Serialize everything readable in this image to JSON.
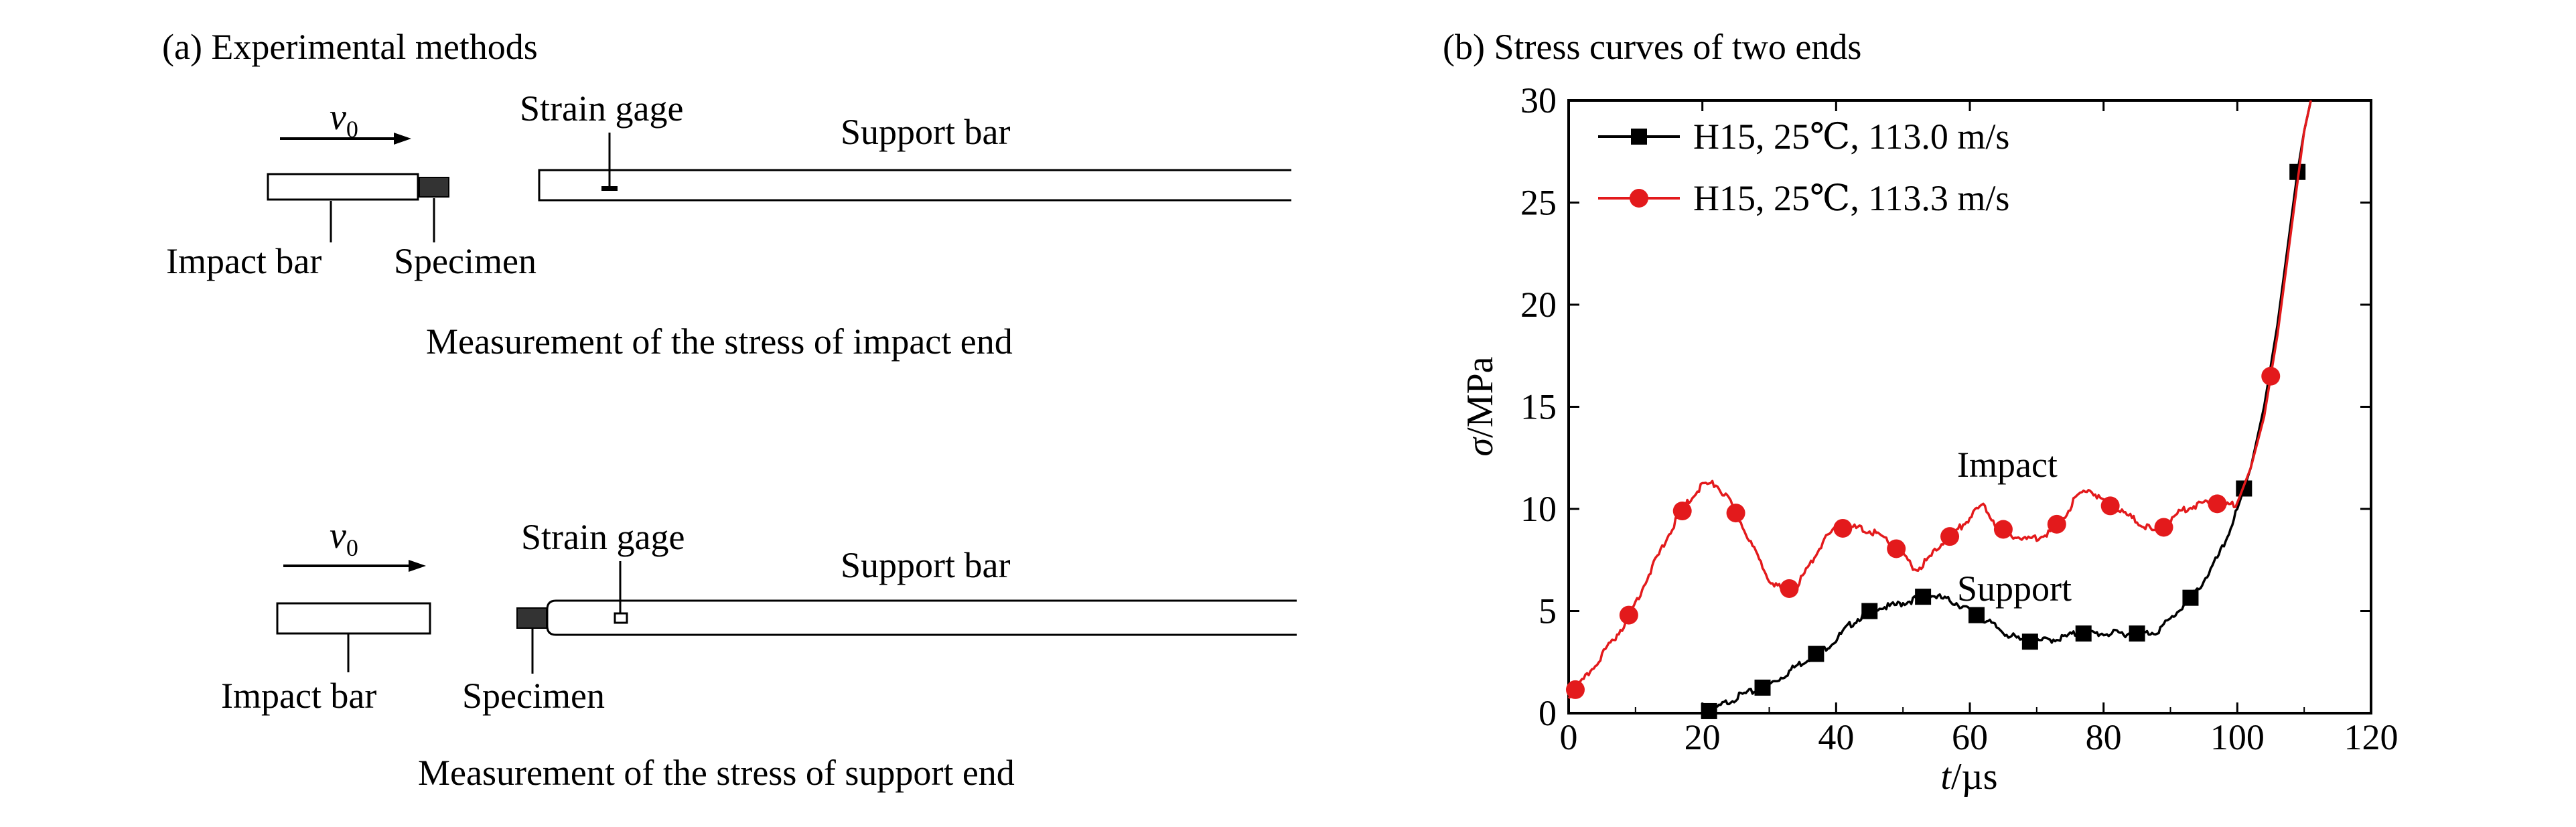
{
  "panel_a": {
    "title": "(a) Experimental methods",
    "top": {
      "velocity_label": "v",
      "velocity_subscript": "0",
      "strain_gage_label": "Strain gage",
      "support_bar_label": "Support bar",
      "impact_bar_label": "Impact bar",
      "specimen_label": "Specimen",
      "caption": "Measurement of the stress of impact end"
    },
    "bottom": {
      "velocity_label": "v",
      "velocity_subscript": "0",
      "strain_gage_label": "Strain gage",
      "support_bar_label": "Support bar",
      "impact_bar_label": "Impact bar",
      "specimen_label": "Specimen",
      "caption": "Measurement of the stress of support end"
    }
  },
  "panel_b": {
    "title": "(b) Stress curves of two ends",
    "annotations": {
      "impact": "Impact",
      "support": "Support"
    }
  },
  "chart_data": {
    "type": "line",
    "title": "(b) Stress curves of two ends",
    "xlabel_italic": "t",
    "xlabel_unit": "/µs",
    "ylabel_italic": "σ",
    "ylabel_unit": "/MPa",
    "xlim": [
      0,
      120
    ],
    "ylim": [
      0,
      30
    ],
    "xticks": [
      "0",
      "20",
      "40",
      "60",
      "80",
      "100",
      "120"
    ],
    "yticks": [
      "0",
      "5",
      "10",
      "15",
      "20",
      "25",
      "30"
    ],
    "legend_position": "top-left",
    "grid": false,
    "series": [
      {
        "name": "H15, 25℃, 113.0 m/s",
        "color": "#000000",
        "marker": "square",
        "line_x": [
          20,
          21,
          22,
          24,
          26,
          28,
          30,
          32,
          34,
          36,
          38,
          40,
          42,
          44,
          46,
          48,
          50,
          52,
          54,
          56,
          58,
          60,
          62,
          64,
          66,
          68,
          70,
          72,
          74,
          76,
          78,
          80,
          82,
          84,
          86,
          88,
          90,
          92,
          94,
          96,
          98,
          100,
          102,
          104,
          106,
          108,
          109,
          110,
          111
        ],
        "line_y": [
          0,
          0.1,
          0.2,
          0.6,
          0.9,
          1.1,
          1.4,
          1.8,
          2.3,
          2.7,
          3.1,
          3.6,
          4.3,
          4.8,
          5.2,
          5.2,
          5.4,
          5.6,
          5.8,
          5.6,
          5.4,
          5.0,
          4.6,
          4.2,
          3.8,
          3.5,
          3.5,
          3.6,
          3.7,
          3.9,
          3.9,
          3.9,
          3.9,
          3.9,
          3.9,
          4.0,
          4.6,
          5.3,
          6.0,
          7.0,
          8.2,
          10.0,
          12.0,
          15.0,
          19.0,
          24.0,
          26.5,
          28.5,
          30
        ]
      },
      {
        "name": "H15, 25℃, 113.3 m/s",
        "color": "#e31a1c",
        "marker": "circle",
        "line_x": [
          0,
          2,
          4,
          6,
          8,
          10,
          12,
          14,
          16,
          18,
          20,
          22,
          24,
          26,
          28,
          30,
          32,
          34,
          36,
          38,
          40,
          42,
          44,
          46,
          48,
          50,
          52,
          54,
          56,
          58,
          60,
          62,
          64,
          66,
          68,
          70,
          72,
          74,
          76,
          78,
          80,
          82,
          84,
          86,
          88,
          90,
          92,
          94,
          96,
          98,
          100,
          102,
          104,
          106,
          108,
          109,
          110,
          111
        ],
        "line_y": [
          0.8,
          1.5,
          2.4,
          3.3,
          4.2,
          5.4,
          6.8,
          8.1,
          9.4,
          10.4,
          11.2,
          11.2,
          10.4,
          9.2,
          7.8,
          6.6,
          6.0,
          6.2,
          7.2,
          8.4,
          9.0,
          9.1,
          9.0,
          8.8,
          8.4,
          7.7,
          7.0,
          7.6,
          8.4,
          8.9,
          9.6,
          10.2,
          9.2,
          8.8,
          8.5,
          8.6,
          8.9,
          9.6,
          10.6,
          11.0,
          10.3,
          10.0,
          9.6,
          9.2,
          8.8,
          9.4,
          10.0,
          10.2,
          10.4,
          10.1,
          10.3,
          12.0,
          14.5,
          18.5,
          23.5,
          26.0,
          28.5,
          30
        ]
      }
    ]
  }
}
